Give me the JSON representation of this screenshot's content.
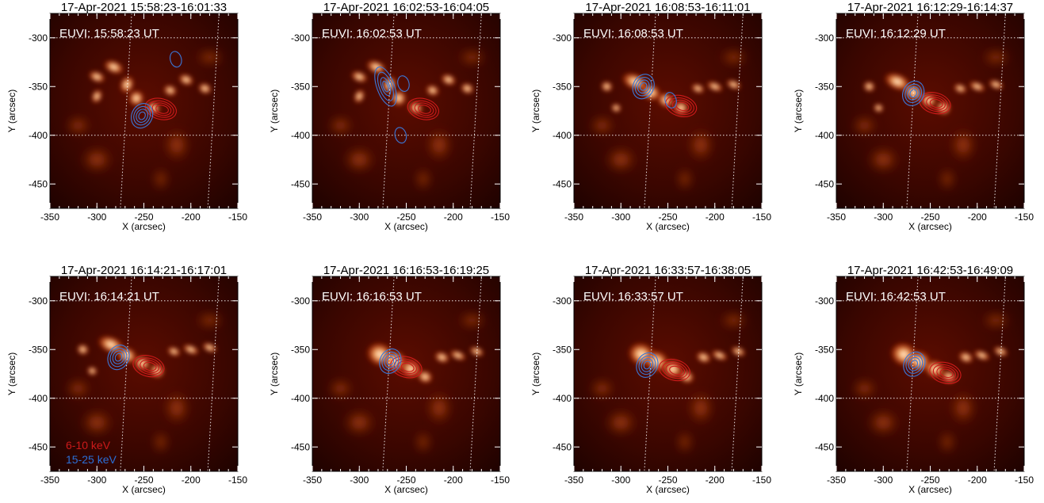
{
  "chart_data": {
    "type": "image-panels-with-contours",
    "xlabel": "X (arcsec)",
    "ylabel": "Y (arcsec)",
    "xlim": [
      -350,
      -150
    ],
    "ylim": [
      -475,
      -275
    ],
    "xticks": [
      -350,
      -300,
      -250,
      -200,
      -150
    ],
    "yticks": [
      -300,
      -350,
      -400,
      -450
    ],
    "grid": "dotted heliographic grid lines (white)",
    "legend": {
      "location": "lower-left of panel 5",
      "entries": [
        {
          "label": "6-10 keV",
          "color": "#cc1a1a"
        },
        {
          "label": "15-25 keV",
          "color": "#2b6fd6"
        }
      ]
    },
    "series_colors": {
      "low_energy": "#cc1a1a",
      "high_energy": "#3a78d8"
    },
    "panels": [
      {
        "title": "17-Apr-2021 15:58:23-16:01:33",
        "euvi_label": "EUVI: 15:58:23 UT",
        "red_source": {
          "x": -232,
          "y": -373
        },
        "blue_source": {
          "x": -252,
          "y": -380
        },
        "blue_extra": [
          {
            "x": -216,
            "y": -322
          }
        ]
      },
      {
        "title": "17-Apr-2021 16:02:53-16:04:05",
        "euvi_label": "EUVI: 16:02:53 UT",
        "red_source": {
          "x": -232,
          "y": -373
        },
        "blue_source": {
          "x": -272,
          "y": -350
        },
        "blue_extra": [
          {
            "x": -253,
            "y": -347
          },
          {
            "x": -256,
            "y": -400
          }
        ]
      },
      {
        "title": "17-Apr-2021 16:08:53-16:11:01",
        "euvi_label": "EUVI: 16:08:53 UT",
        "red_source": {
          "x": -236,
          "y": -370
        },
        "blue_source": {
          "x": -276,
          "y": -350
        },
        "blue_extra": [
          {
            "x": -247,
            "y": -364
          }
        ]
      },
      {
        "title": "17-Apr-2021 16:12:29-16:14:37",
        "euvi_label": "EUVI: 16:12:29 UT",
        "red_source": {
          "x": -245,
          "y": -367
        },
        "blue_source": {
          "x": -268,
          "y": -357
        },
        "blue_extra": []
      },
      {
        "title": "17-Apr-2021 16:14:21-16:17:01",
        "euvi_label": "EUVI: 16:14:21 UT",
        "red_source": {
          "x": -245,
          "y": -367
        },
        "blue_source": {
          "x": -277,
          "y": -358
        },
        "blue_extra": []
      },
      {
        "title": "17-Apr-2021 16:16:53-16:19:25",
        "euvi_label": "EUVI: 16:16:53 UT",
        "red_source": {
          "x": -250,
          "y": -368
        },
        "blue_source": {
          "x": -267,
          "y": -362
        },
        "blue_extra": []
      },
      {
        "title": "17-Apr-2021 16:33:57-16:38:05",
        "euvi_label": "EUVI: 16:33:57 UT",
        "red_source": {
          "x": -243,
          "y": -371
        },
        "blue_source": {
          "x": -272,
          "y": -366
        },
        "blue_extra": []
      },
      {
        "title": "17-Apr-2021 16:42:53-16:49:09",
        "euvi_label": "EUVI: 16:42:53 UT",
        "red_source": {
          "x": -234,
          "y": -374
        },
        "blue_source": {
          "x": -267,
          "y": -365
        },
        "blue_extra": []
      }
    ]
  }
}
